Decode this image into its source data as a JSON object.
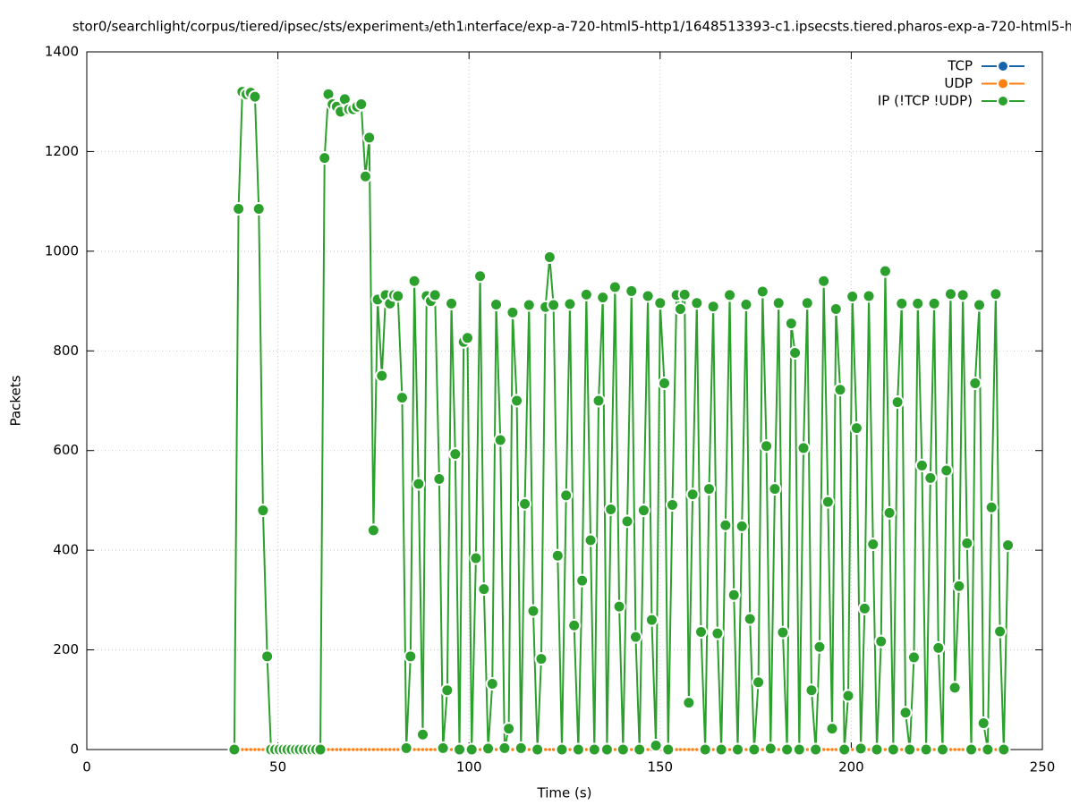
{
  "chart_data": {
    "type": "line",
    "title": "stor0/searchlight/corpus/tiered/ipsec/sts/experiment₃/eth1ᵢnterface/exp-a-720-html5-http1/1648513393-c1.ipsecsts.tiered.pharos-exp-a-720-html5-h",
    "xlabel": "Time (s)",
    "ylabel": "Packets",
    "x": [
      38.6,
      39.7,
      40.7,
      41.8,
      42.9,
      44.0,
      45.0,
      46.1,
      47.2,
      48.2,
      49.3,
      50.4,
      51.5,
      52.5,
      53.6,
      54.7,
      55.7,
      56.8,
      57.9,
      59.0,
      60.0,
      61.1,
      62.2,
      63.2,
      64.3,
      65.4,
      66.4,
      67.5,
      68.6,
      69.7,
      70.7,
      71.8,
      72.9,
      73.9,
      75.0,
      76.1,
      77.2,
      78.2,
      79.3,
      80.4,
      81.4,
      82.5,
      83.6,
      84.7,
      85.7,
      86.8,
      87.9,
      88.9,
      90.0,
      91.1,
      92.2,
      93.2,
      94.3,
      95.4,
      96.4,
      97.5,
      98.6,
      99.6,
      100.7,
      101.8,
      102.9,
      103.9,
      105.0,
      106.1,
      107.1,
      108.2,
      109.3,
      110.4,
      111.4,
      112.5,
      113.6,
      114.6,
      115.7,
      116.8,
      117.9,
      118.9,
      120.0,
      121.1,
      122.1,
      123.2,
      124.3,
      125.4,
      126.4,
      127.5,
      128.6,
      129.6,
      130.7,
      131.8,
      132.8,
      133.9,
      135.0,
      136.1,
      137.1,
      138.2,
      139.3,
      140.3,
      141.4,
      142.5,
      143.6,
      144.6,
      145.7,
      146.8,
      147.8,
      148.9,
      150.0,
      151.1,
      152.1,
      153.2,
      154.3,
      155.3,
      156.4,
      157.5,
      158.5,
      159.6,
      160.7,
      161.8,
      162.8,
      163.9,
      165.0,
      166.0,
      167.1,
      168.2,
      169.3,
      170.3,
      171.4,
      172.5,
      173.5,
      174.6,
      175.7,
      176.8,
      177.8,
      178.9,
      180.0,
      181.0,
      182.1,
      183.2,
      184.3,
      185.3,
      186.4,
      187.5,
      188.5,
      189.6,
      190.7,
      191.7,
      192.8,
      193.9,
      195.0,
      196.0,
      197.1,
      198.2,
      199.2,
      200.3,
      201.4,
      202.5,
      203.5,
      204.6,
      205.7,
      206.7,
      207.8,
      208.9,
      210.0,
      211.0,
      212.1,
      213.2,
      214.2,
      215.3,
      216.4,
      217.4,
      218.5,
      219.6,
      220.7,
      221.7,
      222.8,
      223.9,
      224.9,
      226.0,
      227.1,
      228.2,
      229.2,
      230.3,
      231.4,
      232.4,
      233.5,
      234.6,
      235.7,
      236.7,
      237.8,
      238.9,
      239.9,
      241.0
    ],
    "series": [
      {
        "name": "TCP",
        "color": "#1764ab",
        "values": [
          0,
          0,
          0,
          0,
          0,
          0,
          0,
          0,
          0,
          0,
          0,
          0,
          0,
          0,
          0,
          0,
          0,
          0,
          0,
          0,
          0,
          0,
          0,
          0,
          0,
          0,
          0,
          0,
          0,
          0,
          0,
          0,
          0,
          0,
          0,
          0,
          0,
          0,
          0,
          0,
          0,
          0,
          0,
          0,
          0,
          0,
          0,
          0,
          0,
          0,
          0,
          0,
          0,
          0,
          0,
          0,
          0,
          0,
          0,
          0,
          0,
          0,
          0,
          0,
          0,
          0,
          0,
          0,
          0,
          0,
          0,
          0,
          0,
          0,
          0,
          0,
          0,
          0,
          0,
          0,
          0,
          0,
          0,
          0,
          0,
          0,
          0,
          0,
          0,
          0,
          0,
          0,
          0,
          0,
          0,
          0,
          0,
          0,
          0,
          0,
          0,
          0,
          0,
          0,
          0,
          0,
          0,
          0,
          0,
          0,
          0,
          0,
          0,
          0,
          0,
          0,
          0,
          0,
          0,
          0,
          0,
          0,
          0,
          0,
          0,
          0,
          0,
          0,
          0,
          0,
          0,
          0,
          0,
          0,
          0,
          0,
          0,
          0,
          0,
          0,
          0,
          0,
          0,
          0,
          0,
          0,
          0,
          0,
          0,
          0,
          0,
          0,
          0,
          0,
          0,
          0,
          0,
          0,
          0,
          0,
          0,
          0,
          0,
          0,
          0,
          0,
          0,
          0,
          0,
          0,
          0,
          0,
          0,
          0,
          0,
          0,
          0,
          0,
          0,
          0,
          0,
          0,
          0,
          0,
          0,
          0,
          0,
          0,
          0,
          0
        ]
      },
      {
        "name": "UDP",
        "color": "#ff7f0e",
        "values": [
          0,
          0,
          0,
          0,
          0,
          0,
          0,
          0,
          0,
          0,
          0,
          0,
          0,
          0,
          0,
          0,
          0,
          0,
          0,
          0,
          0,
          0,
          0,
          0,
          0,
          0,
          0,
          0,
          0,
          0,
          0,
          0,
          0,
          0,
          0,
          0,
          0,
          0,
          0,
          0,
          0,
          0,
          0,
          0,
          0,
          0,
          0,
          0,
          0,
          0,
          0,
          0,
          0,
          0,
          0,
          0,
          0,
          0,
          0,
          0,
          0,
          0,
          0,
          0,
          0,
          0,
          0,
          0,
          0,
          0,
          0,
          0,
          0,
          0,
          0,
          0,
          0,
          0,
          0,
          0,
          0,
          0,
          0,
          0,
          0,
          0,
          0,
          0,
          0,
          0,
          0,
          0,
          0,
          0,
          0,
          0,
          0,
          0,
          0,
          0,
          0,
          0,
          0,
          0,
          0,
          0,
          0,
          0,
          0,
          0,
          0,
          0,
          0,
          0,
          0,
          0,
          0,
          0,
          0,
          0,
          0,
          0,
          0,
          0,
          0,
          0,
          0,
          0,
          0,
          0,
          0,
          0,
          0,
          0,
          0,
          0,
          0,
          0,
          0,
          0,
          0,
          0,
          0,
          0,
          0,
          0,
          0,
          0,
          0,
          0,
          0,
          0,
          0,
          0,
          0,
          0,
          0,
          0,
          0,
          0,
          0,
          0,
          0,
          0,
          0,
          0,
          0,
          0,
          0,
          0,
          0,
          0,
          0,
          0,
          0,
          0,
          0,
          0,
          0,
          0,
          0,
          0,
          0,
          0,
          0,
          0,
          0,
          0,
          0,
          0
        ]
      },
      {
        "name": "IP (!TCP  !UDP)",
        "color": "#2ca02c",
        "values": [
          0,
          1085,
          1320,
          1315,
          1318,
          1310,
          1085,
          480,
          187,
          0,
          0,
          0,
          0,
          0,
          0,
          0,
          0,
          0,
          0,
          0,
          0,
          0,
          1187,
          1315,
          1295,
          1290,
          1280,
          1305,
          1285,
          1285,
          1290,
          1295,
          1150,
          1228,
          440,
          903,
          750,
          912,
          895,
          912,
          910,
          706,
          3,
          187,
          940,
          533,
          30,
          910,
          900,
          912,
          543,
          3,
          119,
          895,
          593,
          0,
          818,
          826,
          0,
          384,
          950,
          322,
          2,
          132,
          893,
          621,
          3,
          42,
          877,
          700,
          3,
          493,
          892,
          278,
          0,
          182,
          888,
          988,
          892,
          389,
          0,
          510,
          894,
          249,
          0,
          339,
          913,
          420,
          0,
          700,
          907,
          0,
          482,
          928,
          287,
          0,
          458,
          920,
          226,
          0,
          480,
          910,
          260,
          8,
          896,
          735,
          0,
          491,
          912,
          884,
          913,
          94,
          512,
          896,
          236,
          0,
          523,
          889,
          233,
          0,
          450,
          912,
          310,
          0,
          448,
          893,
          262,
          0,
          135,
          919,
          609,
          2,
          523,
          896,
          235,
          0,
          855,
          796,
          0,
          605,
          896,
          119,
          0,
          206,
          940,
          497,
          42,
          884,
          722,
          0,
          108,
          909,
          645,
          2,
          283,
          910,
          412,
          0,
          217,
          960,
          475,
          0,
          697,
          895,
          74,
          0,
          185,
          895,
          570,
          0,
          545,
          895,
          204,
          0,
          560,
          914,
          124,
          328,
          912,
          414,
          0,
          735,
          892,
          53,
          0,
          486,
          914,
          237,
          0,
          410
        ]
      }
    ],
    "xlim": [
      0,
      250
    ],
    "xticks": [
      0,
      50,
      100,
      150,
      200,
      250
    ],
    "ylim": [
      0,
      1400
    ],
    "yticks": [
      0,
      200,
      400,
      600,
      800,
      1000,
      1200,
      1400
    ],
    "grid": true,
    "legend": "top-right"
  }
}
